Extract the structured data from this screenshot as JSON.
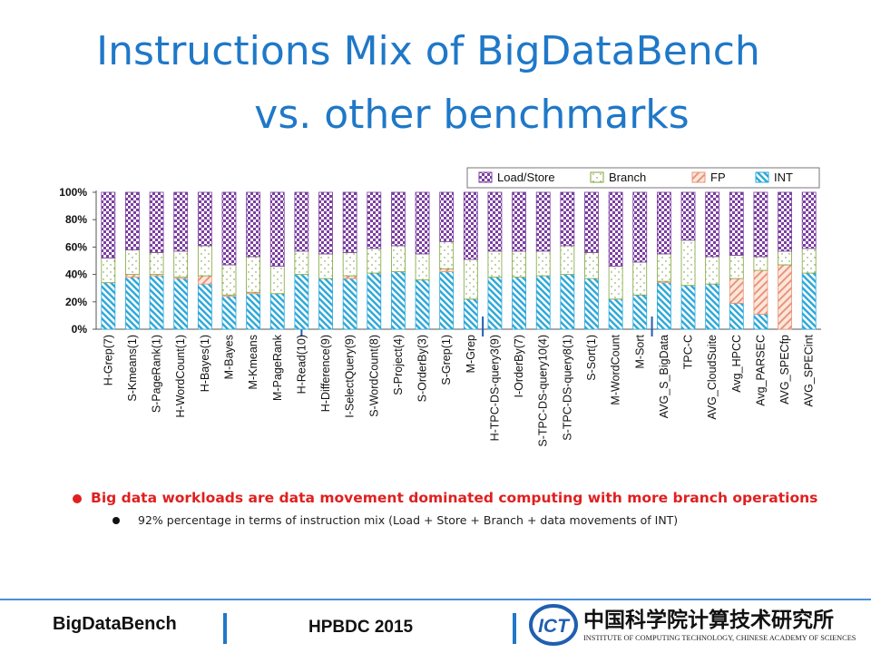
{
  "slide": {
    "title_line1": "Instructions Mix of BigDataBench",
    "title_line2": "vs. other benchmarks",
    "bullet_main": "Big data workloads are data movement dominated computing with more branch operations",
    "bullet_sub": "92% percentage in terms of instruction mix  (Load + Store + Branch + data movements of INT)",
    "footer_left": "BigDataBench",
    "footer_center": "HPBDC 2015",
    "logo": {
      "mark": "ICT",
      "chinese": "中国科学院计算技术研究所",
      "english": "INSTITUTE OF COMPUTING TECHNOLOGY, CHINESE ACADEMY OF SCIENCES"
    },
    "colors": {
      "title": "#1f78c8",
      "bullet": "#e02020",
      "load_store": "#7b3fa0",
      "branch": "#7ea43a",
      "fp": "#e8957a",
      "int": "#2aa7d8"
    }
  },
  "chart_data": {
    "type": "bar",
    "stacked": true,
    "percent": true,
    "yticks": [
      "0%",
      "20%",
      "40%",
      "60%",
      "80%",
      "100%"
    ],
    "ylim": [
      0,
      100
    ],
    "legend_position": "top-right",
    "categories": [
      "H-Grep(7)",
      "S-Kmeans(1)",
      "S-PageRank(1)",
      "H-WordCount(1)",
      "H-Bayes(1)",
      "M-Bayes",
      "M-Kmeans",
      "M-PageRank",
      "H-Read(10)",
      "H-Difference(9)",
      "I-SelectQuery(9)",
      "S-WordCount(8)",
      "S-Project(4)",
      "S-OrderBy(3)",
      "S-Grep(1)",
      "M-Grep",
      "H-TPC-DS-query3(9)",
      "I-OrderBy(7)",
      "S-TPC-DS-query10(4)",
      "S-TPC-DS-query8(1)",
      "S-Sort(1)",
      "M-WordCount",
      "M-Sort",
      "AVG_S_BigData",
      "TPC-C",
      "AVG_CloudSuite",
      "Avg_HPCC",
      "Avg_PARSEC",
      "AVG_SPECfp",
      "AVG_SPECint"
    ],
    "series": [
      {
        "name": "INT",
        "values": [
          34,
          38,
          39,
          37,
          33,
          24,
          26,
          26,
          40,
          37,
          37,
          41,
          42,
          36,
          42,
          22,
          38,
          38,
          39,
          40,
          37,
          22,
          25,
          34,
          32,
          33,
          19,
          11,
          0,
          41
        ]
      },
      {
        "name": "FP",
        "values": [
          0,
          2,
          1,
          1,
          6,
          1,
          1,
          0,
          0,
          0,
          2,
          0,
          0,
          0,
          2,
          0,
          0,
          0,
          0,
          0,
          0,
          0,
          0,
          1,
          0,
          0,
          18,
          32,
          47,
          0
        ]
      },
      {
        "name": "Branch",
        "values": [
          18,
          18,
          16,
          19,
          22,
          22,
          26,
          20,
          17,
          18,
          17,
          18,
          19,
          19,
          20,
          29,
          19,
          19,
          18,
          21,
          19,
          24,
          24,
          20,
          33,
          20,
          17,
          10,
          10,
          18
        ]
      },
      {
        "name": "Load/Store",
        "values": [
          48,
          42,
          44,
          43,
          39,
          53,
          47,
          54,
          43,
          45,
          44,
          41,
          39,
          45,
          36,
          49,
          43,
          43,
          43,
          39,
          44,
          54,
          51,
          45,
          35,
          47,
          46,
          47,
          43,
          41
        ]
      }
    ]
  }
}
